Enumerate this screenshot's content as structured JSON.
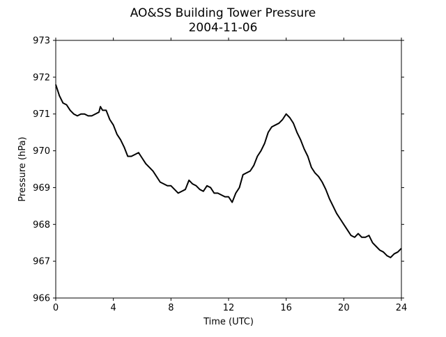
{
  "chart_data": {
    "type": "line",
    "title": "AO&SS Building Tower Pressure",
    "subtitle": "2004-11-06",
    "xlabel": "Time (UTC)",
    "ylabel": "Pressure (hPa)",
    "xlim": [
      0,
      24
    ],
    "ylim": [
      966,
      973
    ],
    "xticks": [
      0,
      4,
      8,
      12,
      16,
      20,
      24
    ],
    "yticks": [
      966,
      967,
      968,
      969,
      970,
      971,
      972,
      973
    ],
    "xtick_labels": [
      "0",
      "4",
      "8",
      "12",
      "16",
      "20",
      "24"
    ],
    "ytick_labels": [
      "966",
      "967",
      "968",
      "969",
      "970",
      "971",
      "972",
      "973"
    ],
    "grid": false,
    "legend": "none",
    "line_color": "#000000",
    "series": [
      {
        "x": [
          0,
          0.25,
          0.5,
          0.75,
          1.0,
          1.25,
          1.5,
          1.75,
          2.0,
          2.25,
          2.5,
          2.75,
          3.0,
          3.1,
          3.25,
          3.5,
          3.75,
          4.0,
          4.25,
          4.5,
          4.75,
          5.0,
          5.25,
          5.5,
          5.75,
          6.0,
          6.25,
          6.5,
          6.75,
          7.0,
          7.25,
          7.5,
          7.75,
          8.0,
          8.25,
          8.5,
          8.75,
          9.0,
          9.25,
          9.5,
          9.75,
          10.0,
          10.25,
          10.5,
          10.75,
          11.0,
          11.25,
          11.5,
          11.75,
          12.0,
          12.25,
          12.5,
          12.75,
          13.0,
          13.25,
          13.5,
          13.75,
          14.0,
          14.25,
          14.5,
          14.75,
          15.0,
          15.25,
          15.5,
          15.75,
          16.0,
          16.25,
          16.5,
          16.75,
          17.0,
          17.25,
          17.5,
          17.75,
          18.0,
          18.25,
          18.5,
          18.75,
          19.0,
          19.25,
          19.5,
          19.75,
          20.0,
          20.25,
          20.5,
          20.75,
          21.0,
          21.25,
          21.5,
          21.75,
          22.0,
          22.25,
          22.5,
          22.75,
          23.0,
          23.25,
          23.5,
          23.75,
          24.0
        ],
        "values": [
          971.8,
          971.5,
          971.3,
          971.25,
          971.1,
          971.0,
          970.95,
          971.0,
          971.0,
          970.95,
          970.95,
          971.0,
          971.05,
          971.2,
          971.1,
          971.1,
          970.85,
          970.7,
          970.45,
          970.3,
          970.1,
          969.85,
          969.85,
          969.9,
          969.95,
          969.8,
          969.65,
          969.55,
          969.45,
          969.3,
          969.15,
          969.1,
          969.05,
          969.05,
          968.95,
          968.85,
          968.9,
          968.95,
          969.2,
          969.1,
          969.05,
          968.95,
          968.9,
          969.05,
          969.0,
          968.85,
          968.85,
          968.8,
          968.75,
          968.75,
          968.6,
          968.85,
          969.0,
          969.35,
          969.4,
          969.45,
          969.6,
          969.85,
          970.0,
          970.2,
          970.5,
          970.65,
          970.7,
          970.75,
          970.85,
          971.0,
          970.9,
          970.75,
          970.5,
          970.3,
          970.05,
          969.85,
          969.55,
          969.4,
          969.3,
          969.15,
          968.95,
          968.7,
          968.5,
          968.3,
          968.15,
          968.0,
          967.85,
          967.7,
          967.65,
          967.75,
          967.65,
          967.65,
          967.7,
          967.5,
          967.4,
          967.3,
          967.25,
          967.15,
          967.1,
          967.2,
          967.25,
          967.35
        ]
      }
    ]
  }
}
